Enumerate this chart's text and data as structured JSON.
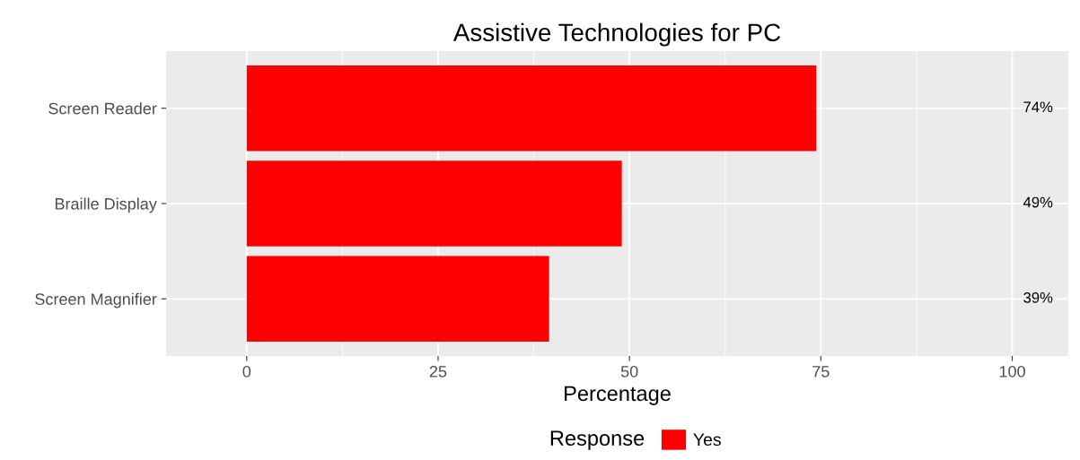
{
  "chart_data": {
    "type": "bar",
    "orientation": "horizontal",
    "title": "Assistive Technologies for PC",
    "xlabel": "Percentage",
    "categories": [
      "Screen Reader",
      "Braille Display",
      "Screen Magnifier"
    ],
    "series": [
      {
        "name": "Yes",
        "color": "#ff0000",
        "values": [
          74.4,
          49.0,
          39.5
        ],
        "value_labels": [
          "74%",
          "49%",
          "39%"
        ]
      }
    ],
    "legend_title": "Response",
    "legend": "bottom",
    "xlim": [
      -10.5,
      107.3
    ],
    "xticks": [
      0,
      25,
      50,
      75,
      100
    ],
    "grid": true
  }
}
